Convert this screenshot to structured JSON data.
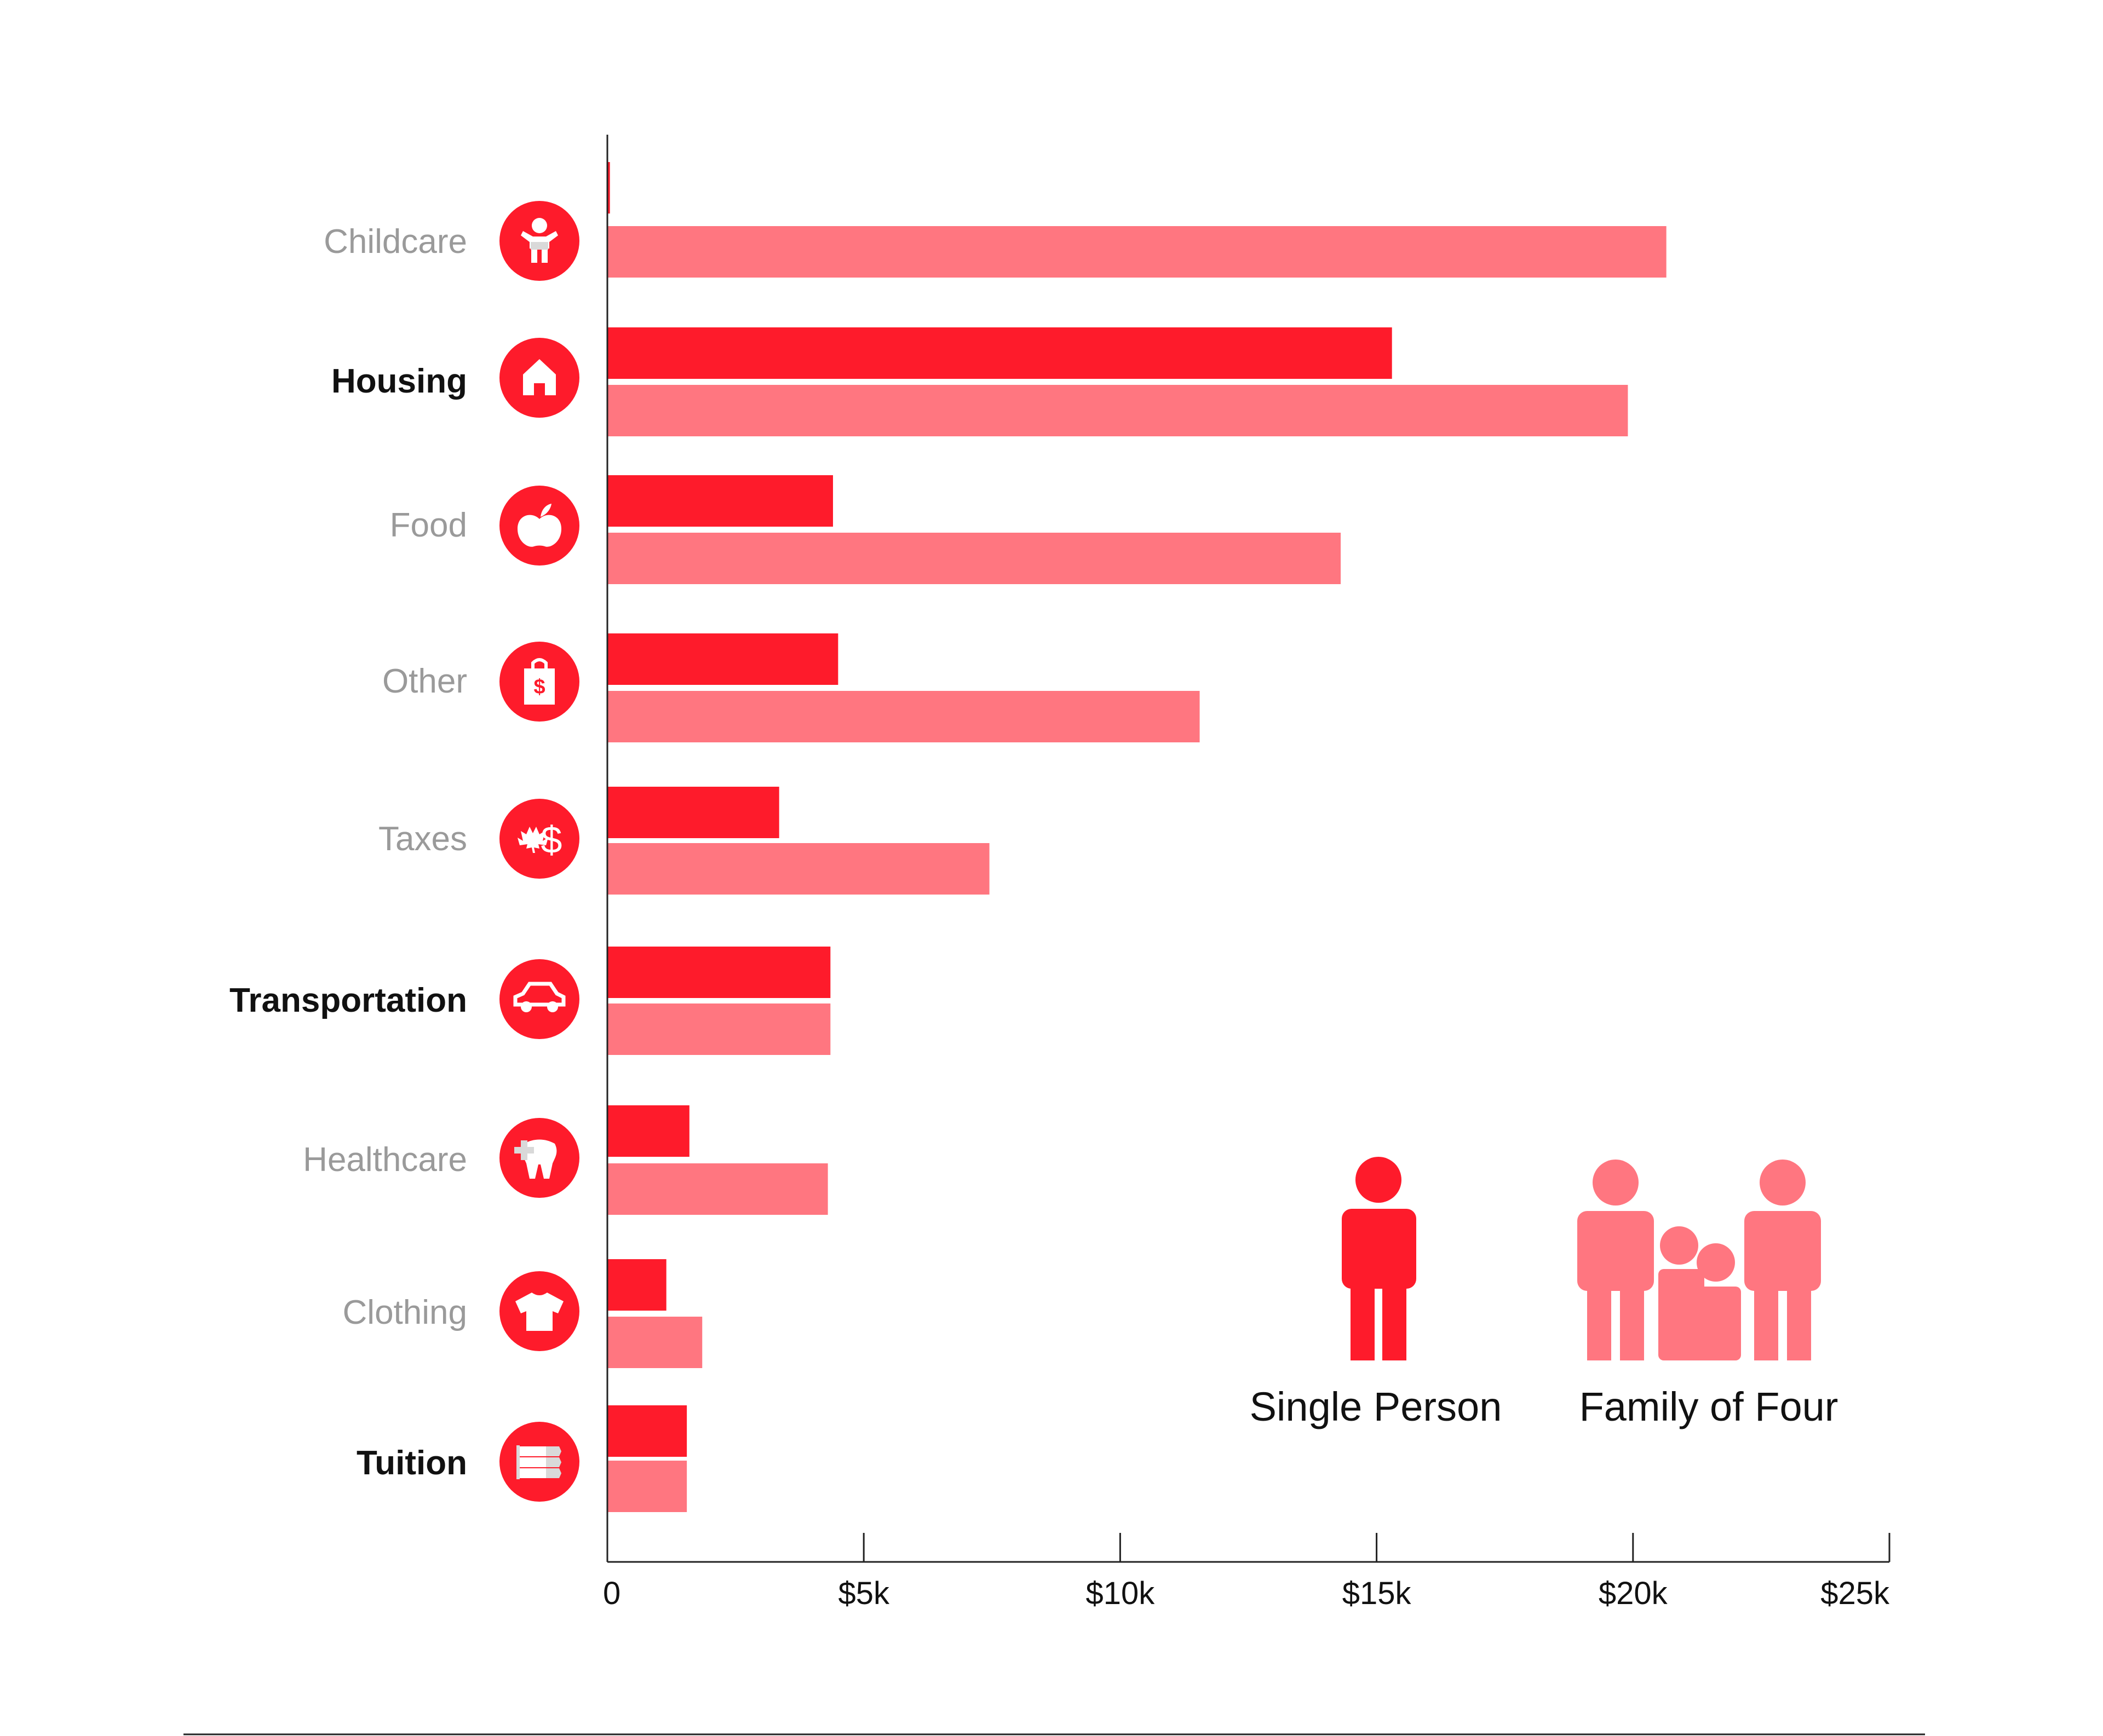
{
  "colors": {
    "single": "#fe1b2b",
    "family": "#ff7680",
    "axis": "#222222",
    "muted_label": "#9a9a9a",
    "bold_label": "#111111"
  },
  "chart_data": {
    "type": "bar",
    "orientation": "horizontal",
    "categories": [
      "Childcare",
      "Housing",
      "Food",
      "Other",
      "Taxes",
      "Transportation",
      "Healthcare",
      "Clothing",
      "Tuition"
    ],
    "bold_categories": [
      "Housing",
      "Transportation",
      "Tuition"
    ],
    "icons": [
      "child-icon",
      "house-icon",
      "apple-icon",
      "shopping-bag-icon",
      "maple-leaf-dollar-icon",
      "car-icon",
      "tooth-icon",
      "tshirt-icon",
      "books-icon"
    ],
    "series": [
      {
        "name": "Single Person",
        "color": "#fe1b2b",
        "values": [
          50,
          15300,
          4400,
          4500,
          3350,
          4350,
          1600,
          1150,
          1550
        ]
      },
      {
        "name": "Family of Four",
        "color": "#ff7680",
        "values": [
          20650,
          19900,
          14300,
          11550,
          7450,
          4350,
          4300,
          1850,
          1550
        ]
      }
    ],
    "xlim": [
      0,
      25000
    ],
    "x_ticks": [
      0,
      5000,
      10000,
      15000,
      20000,
      25000
    ],
    "x_tick_labels": [
      "0",
      "$5k",
      "$10k",
      "$15k",
      "$20k",
      "$25k"
    ],
    "xlabel": "",
    "ylabel": "",
    "title": "",
    "grid": false,
    "legend": {
      "placement": "bottom-right",
      "entries": [
        "Single Person",
        "Family of Four"
      ]
    }
  }
}
